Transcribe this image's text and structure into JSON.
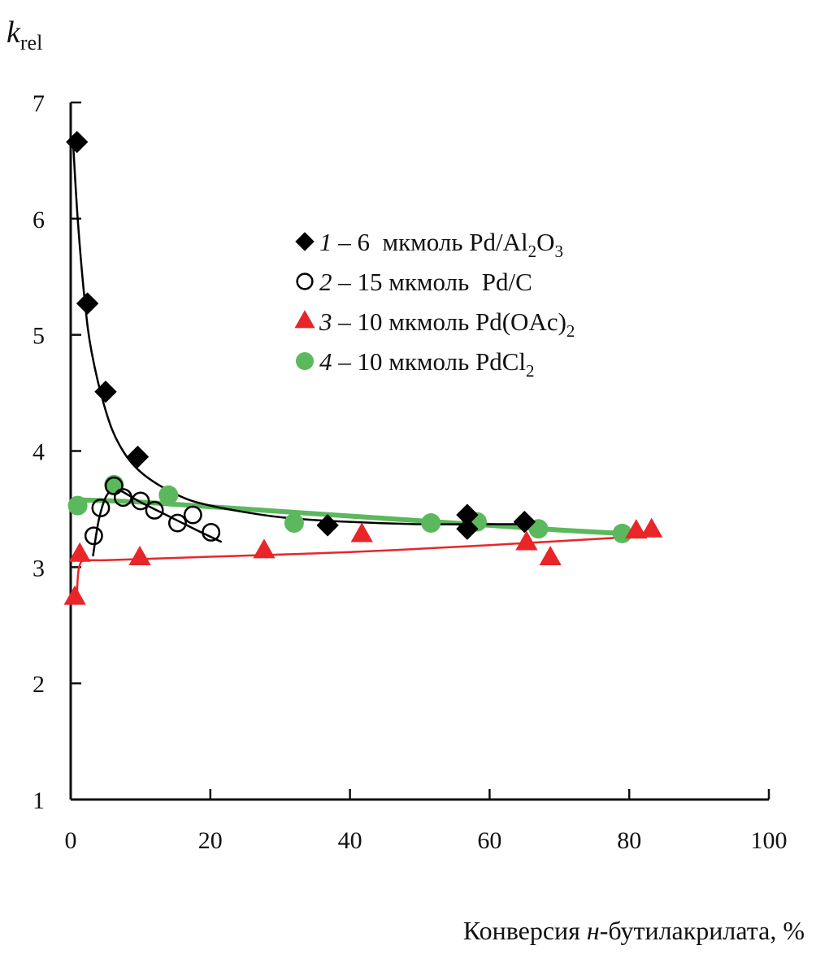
{
  "chart_data": {
    "type": "scatter",
    "title": "",
    "xlabel": "Конверсия н-бутилакрилата, %",
    "xlabel_parts": {
      "before": "Конверсия ",
      "italic": "н",
      "after": "-бутилакрилата, %"
    },
    "ylabel": "k_rel",
    "ylabel_parts": {
      "main": "k",
      "sub": "rel"
    },
    "xlim": [
      0,
      100
    ],
    "ylim": [
      1,
      7
    ],
    "xticks": [
      0,
      20,
      40,
      60,
      80,
      100
    ],
    "yticks": [
      1,
      2,
      3,
      4,
      5,
      6,
      7
    ],
    "grid": false,
    "legend_position": "upper-right",
    "series": [
      {
        "id": "1",
        "name": "1 – 6 мкмоль Pd/Al2O3",
        "legend": {
          "num": "1",
          "text": " – 6  мкмоль Pd/Al",
          "sub1": "2",
          "mid": "O",
          "sub2": "3"
        },
        "marker": "diamond",
        "color": "#000000",
        "x": [
          0.9,
          2.4,
          5.0,
          9.6,
          36.8,
          56.8,
          56.8,
          65.0
        ],
        "y": [
          6.66,
          5.27,
          4.51,
          3.95,
          3.36,
          3.45,
          3.33,
          3.39
        ],
        "fit": {
          "x": [
            0.3,
            1,
            2,
            3,
            5,
            7,
            10,
            15,
            20,
            30,
            40,
            50,
            60,
            66
          ],
          "y": [
            6.7,
            6.0,
            5.3,
            4.85,
            4.35,
            4.05,
            3.82,
            3.63,
            3.53,
            3.43,
            3.39,
            3.37,
            3.37,
            3.37
          ]
        }
      },
      {
        "id": "2",
        "name": "2 – 15 мкмоль Pd/C",
        "legend": {
          "num": "2",
          "text": " – 15 мкмоль  Pd/C"
        },
        "marker": "open-circle",
        "color": "#000000",
        "x": [
          3.3,
          4.3,
          6.2,
          7.5,
          10.0,
          12.0,
          15.3,
          17.5,
          20.1
        ],
        "y": [
          3.27,
          3.51,
          3.7,
          3.6,
          3.57,
          3.49,
          3.38,
          3.45,
          3.3
        ],
        "fit": {
          "x": [
            3.2,
            4,
            5,
            6,
            7,
            8,
            10,
            14,
            18,
            21.5
          ],
          "y": [
            3.1,
            3.4,
            3.6,
            3.66,
            3.66,
            3.63,
            3.56,
            3.44,
            3.32,
            3.22
          ]
        }
      },
      {
        "id": "3",
        "name": "3 – 10 мкмоль Pd(OAc)2",
        "legend": {
          "num": "3",
          "text": " – 10 мкмоль Pd(OAc)",
          "sub1": "2"
        },
        "marker": "triangle",
        "color": "#e8262a",
        "x": [
          0.6,
          1.3,
          9.9,
          27.7,
          41.7,
          65.3,
          68.7,
          81.0,
          83.2
        ],
        "y": [
          2.74,
          3.11,
          3.08,
          3.14,
          3.28,
          3.21,
          3.08,
          3.31,
          3.32
        ],
        "fit": {
          "x": [
            0.9,
            1.0,
            1.2,
            1.6,
            2.5,
            5,
            10,
            20,
            40,
            60,
            83
          ],
          "y": [
            2.75,
            2.9,
            3.0,
            3.05,
            3.06,
            3.06,
            3.07,
            3.09,
            3.13,
            3.19,
            3.27
          ]
        }
      },
      {
        "id": "4",
        "name": "4 – 10 мкмоль PdCl2",
        "legend": {
          "num": "4",
          "text": " – 10 мкмоль PdCl",
          "sub1": "2"
        },
        "marker": "filled-circle",
        "color": "#5cb85c",
        "x": [
          1.0,
          6.2,
          14.0,
          32.0,
          51.6,
          58.2,
          67.0,
          79.0
        ],
        "y": [
          3.53,
          3.71,
          3.62,
          3.38,
          3.38,
          3.39,
          3.33,
          3.29
        ],
        "fit": {
          "x": [
            1,
            10,
            20,
            30,
            40,
            50,
            60,
            70,
            79
          ],
          "y": [
            3.58,
            3.56,
            3.52,
            3.48,
            3.44,
            3.4,
            3.36,
            3.32,
            3.29
          ]
        }
      }
    ]
  }
}
